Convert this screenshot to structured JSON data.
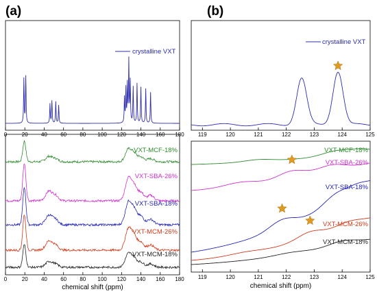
{
  "panel_a_label": "(a)",
  "panel_b_label": "(b)",
  "chart_data": [
    {
      "panel": "(a)",
      "type": "line",
      "xlabel": "chemical shift (ppm)",
      "xlim": [
        0,
        180
      ],
      "x_ticks": [
        "0",
        "20",
        "40",
        "60",
        "80",
        "100",
        "120",
        "140",
        "160",
        "180"
      ],
      "top": {
        "legend": "crystalline VXT",
        "color": "#2b2bb0",
        "peaks": [
          {
            "x": 19,
            "y": 0.62
          },
          {
            "x": 21,
            "y": 0.65
          },
          {
            "x": 46,
            "y": 0.27
          },
          {
            "x": 48,
            "y": 0.31
          },
          {
            "x": 52,
            "y": 0.3
          },
          {
            "x": 55,
            "y": 0.25
          },
          {
            "x": 123,
            "y": 0.35
          },
          {
            "x": 124.5,
            "y": 0.47
          },
          {
            "x": 126,
            "y": 0.52
          },
          {
            "x": 127.5,
            "y": 0.86
          },
          {
            "x": 129,
            "y": 0.57
          },
          {
            "x": 132,
            "y": 0.5
          },
          {
            "x": 136,
            "y": 0.55
          },
          {
            "x": 140,
            "y": 0.5
          },
          {
            "x": 145,
            "y": 0.48
          },
          {
            "x": 150,
            "y": 0.43
          }
        ]
      },
      "series": [
        {
          "name": "VXT-MCF-18%",
          "color": "#2e8b2e"
        },
        {
          "name": "VXT-SBA-26%",
          "color": "#d030d0"
        },
        {
          "name": "VXT-SBA-18%",
          "color": "#2424b8"
        },
        {
          "name": "VXT-MCM-26%",
          "color": "#d03a1a"
        },
        {
          "name": "VXT-MCM-18%",
          "color": "#222222"
        }
      ]
    },
    {
      "panel": "(b)",
      "type": "line",
      "xlabel": "chemical shift (ppm)",
      "xlim": [
        118.6,
        125
      ],
      "x_ticks": [
        "119",
        "120",
        "121",
        "122",
        "123",
        "124",
        "125"
      ],
      "top": {
        "legend": "crystalline VXT",
        "color": "#2b2bb0",
        "peaks": [
          {
            "x": 122.55,
            "y": 0.8
          },
          {
            "x": 123.85,
            "y": 0.92
          }
        ],
        "star_at": 123.85
      },
      "series": [
        {
          "name": "VXT-MCF-18%",
          "color": "#2e8b2e"
        },
        {
          "name": "VXT-SBA-26%",
          "color": "#d030d0",
          "star_at": 122.2
        },
        {
          "name": "VXT-SBA-18%",
          "color": "#2424b8",
          "star_at": 121.85
        },
        {
          "name": "VXT-MCM-26%",
          "color": "#d03a1a",
          "star_at": 122.85
        },
        {
          "name": "VXT-MCM-18%",
          "color": "#222222"
        }
      ]
    }
  ],
  "colors": {
    "star": "#e09a20",
    "axis": "#000000"
  }
}
